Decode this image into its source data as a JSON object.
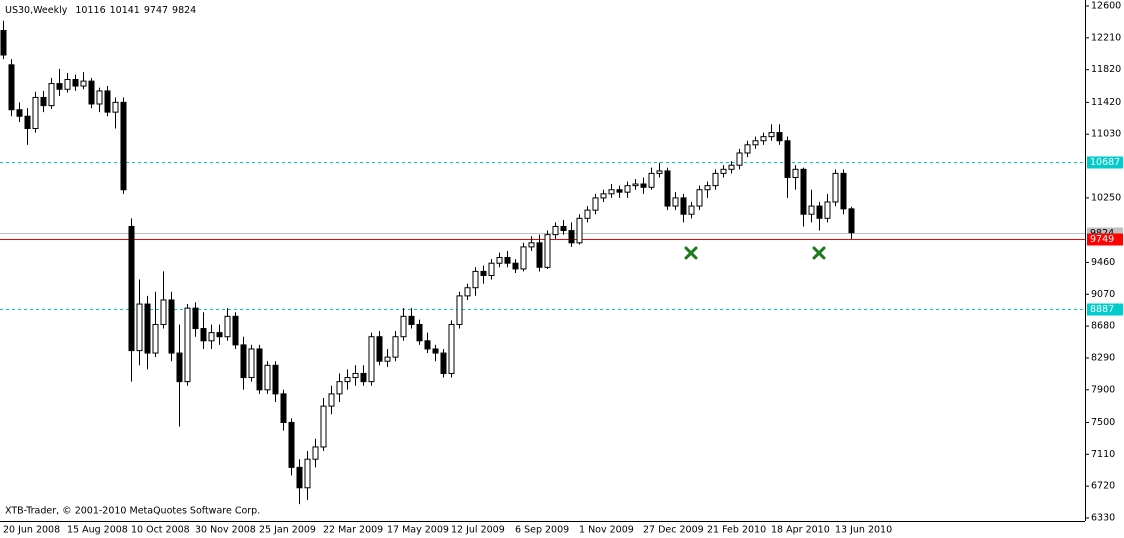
{
  "chart_data": {
    "type": "candlestick",
    "title": "US30,Weekly",
    "footer": "XTB-Trader, © 2001-2010 MetaQuotes Software Corp.",
    "categories": [
      "20 Jun 2008",
      null,
      null,
      null,
      null,
      null,
      null,
      null,
      "15 Aug 2008",
      null,
      null,
      null,
      null,
      null,
      null,
      null,
      "10 Oct 2008",
      null,
      null,
      null,
      null,
      null,
      null,
      null,
      "30 Nov 2008",
      null,
      null,
      null,
      null,
      null,
      null,
      null,
      "25 Jan 2009",
      null,
      null,
      null,
      null,
      null,
      null,
      null,
      "22 Mar 2009",
      null,
      null,
      null,
      null,
      null,
      null,
      null,
      "17 May 2009",
      null,
      null,
      null,
      null,
      null,
      null,
      null,
      "12 Jul 2009",
      null,
      null,
      null,
      null,
      null,
      null,
      null,
      "6 Sep 2009",
      null,
      null,
      null,
      null,
      null,
      null,
      null,
      "1 Nov 2009",
      null,
      null,
      null,
      null,
      null,
      null,
      null,
      "27 Dec 2009",
      null,
      null,
      null,
      null,
      null,
      null,
      null,
      "21 Feb 2010",
      null,
      null,
      null,
      null,
      null,
      null,
      null,
      "18 Apr 2010",
      null,
      null,
      null,
      null,
      null,
      null,
      null,
      "13 Jun 2010",
      null,
      null
    ],
    "open": [
      12300,
      11880,
      11330,
      11250,
      11100,
      11480,
      11380,
      11650,
      11580,
      11700,
      11620,
      11680,
      11400,
      11560,
      11300,
      11420,
      9900,
      8380,
      8950,
      8350,
      8700,
      9000,
      8350,
      8000,
      8900,
      8650,
      8500,
      8600,
      8550,
      8800,
      8450,
      8050,
      8400,
      7900,
      8200,
      7850,
      7500,
      6950,
      6700,
      7050,
      7200,
      7700,
      7850,
      8000,
      8050,
      8100,
      8000,
      8550,
      8250,
      8300,
      8550,
      8800,
      8700,
      8500,
      8400,
      8350,
      8100,
      8700,
      9050,
      9150,
      9350,
      9300,
      9450,
      9520,
      9450,
      9380,
      9650,
      9700,
      9400,
      9800,
      9900,
      9850,
      9700,
      10000,
      10100,
      10250,
      10300,
      10350,
      10320,
      10400,
      10420,
      10380,
      10550,
      10580,
      10150,
      10250,
      10050,
      10150,
      10350,
      10400,
      10550,
      10600,
      10650,
      10800,
      10900,
      10950,
      11000,
      11050,
      10950,
      10500,
      10600,
      10050,
      10150,
      10000,
      10200,
      10550,
      10116
    ],
    "high": [
      12420,
      11950,
      11420,
      11350,
      11550,
      11560,
      11720,
      11830,
      11780,
      11760,
      11790,
      11720,
      11600,
      11620,
      11480,
      11480,
      10000,
      9250,
      9050,
      9100,
      9350,
      9100,
      8700,
      8950,
      8970,
      8850,
      8700,
      8700,
      8900,
      8850,
      8550,
      8450,
      8450,
      8250,
      8250,
      7900,
      7550,
      7050,
      7150,
      7300,
      7800,
      7950,
      8100,
      8150,
      8200,
      8200,
      8600,
      8620,
      8400,
      8620,
      8900,
      8900,
      8760,
      8600,
      8450,
      8400,
      8750,
      9100,
      9200,
      9400,
      9420,
      9500,
      9580,
      9600,
      9500,
      9700,
      9780,
      9800,
      9850,
      9950,
      9980,
      9950,
      10050,
      10150,
      10300,
      10350,
      10420,
      10400,
      10450,
      10480,
      10500,
      10620,
      10680,
      10620,
      10320,
      10300,
      10200,
      10400,
      10450,
      10600,
      10650,
      10700,
      10850,
      10950,
      11000,
      11050,
      11150,
      11150,
      11000,
      10650,
      10620,
      10350,
      10200,
      10300,
      10600,
      10600,
      10141
    ],
    "low": [
      11950,
      11250,
      11180,
      10900,
      11050,
      11300,
      11340,
      11500,
      11540,
      11560,
      11580,
      11350,
      11300,
      11250,
      11100,
      10300,
      8000,
      8200,
      8150,
      8300,
      8650,
      8250,
      7450,
      7950,
      8550,
      8400,
      8400,
      8450,
      8500,
      8400,
      7900,
      8000,
      7850,
      7850,
      7750,
      7400,
      6850,
      6500,
      6550,
      6950,
      7150,
      7600,
      7750,
      7900,
      7950,
      7950,
      7950,
      8200,
      8180,
      8250,
      8500,
      8650,
      8450,
      8350,
      8250,
      8050,
      8050,
      8650,
      9000,
      9050,
      9200,
      9250,
      9400,
      9400,
      9330,
      9350,
      9600,
      9350,
      9380,
      9750,
      9800,
      9650,
      9680,
      9950,
      10050,
      10200,
      10250,
      10250,
      10250,
      10350,
      10300,
      10350,
      10500,
      10100,
      10100,
      9950,
      10000,
      10100,
      10250,
      10350,
      10500,
      10550,
      10600,
      10750,
      10850,
      10900,
      10950,
      10900,
      10250,
      10350,
      9900,
      9950,
      9850,
      9950,
      10150,
      10050,
      9747
    ],
    "close": [
      12000,
      11330,
      11250,
      11100,
      11480,
      11380,
      11650,
      11580,
      11700,
      11620,
      11680,
      11400,
      11560,
      11300,
      11420,
      10350,
      8380,
      8950,
      8350,
      8700,
      9000,
      8350,
      8000,
      8900,
      8650,
      8500,
      8600,
      8550,
      8800,
      8450,
      8050,
      8400,
      7900,
      8200,
      7850,
      7500,
      6950,
      6700,
      7050,
      7200,
      7700,
      7850,
      8000,
      8050,
      8100,
      8000,
      8550,
      8250,
      8300,
      8550,
      8800,
      8700,
      8500,
      8400,
      8350,
      8100,
      8700,
      9050,
      9150,
      9350,
      9300,
      9450,
      9520,
      9450,
      9380,
      9650,
      9700,
      9400,
      9800,
      9900,
      9850,
      9700,
      10000,
      10100,
      10250,
      10300,
      10350,
      10320,
      10400,
      10420,
      10380,
      10550,
      10580,
      10150,
      10250,
      10050,
      10150,
      10350,
      10400,
      10550,
      10600,
      10650,
      10800,
      10900,
      10950,
      11000,
      11050,
      10950,
      10500,
      10600,
      10050,
      10150,
      10000,
      10200,
      10550,
      10116,
      9824
    ],
    "ylim": [
      6330,
      12600
    ],
    "yticks": [
      12600,
      12210,
      11820,
      11420,
      11030,
      10250,
      9460,
      9070,
      8680,
      8290,
      7900,
      7500,
      7110,
      6720,
      6330
    ],
    "levels": [
      {
        "value": 10687,
        "color": "#00cccc",
        "style": "dashed",
        "label_bg": "#00cccc",
        "label_fg": "#ffffff"
      },
      {
        "value": 9824,
        "color": "#c0c0c0",
        "style": "solid",
        "label_bg": "#c0c0c0",
        "label_fg": "#000000"
      },
      {
        "value": 9749,
        "color": "#ff0000",
        "style": "solid",
        "label_bg": "#ff0000",
        "label_fg": "#ffffff"
      },
      {
        "value": 8887,
        "color": "#00cccc",
        "style": "dashed",
        "label_bg": "#00cccc",
        "label_fg": "#ffffff"
      }
    ],
    "up_color": "#ffffff",
    "down_color": "#000000"
  }
}
